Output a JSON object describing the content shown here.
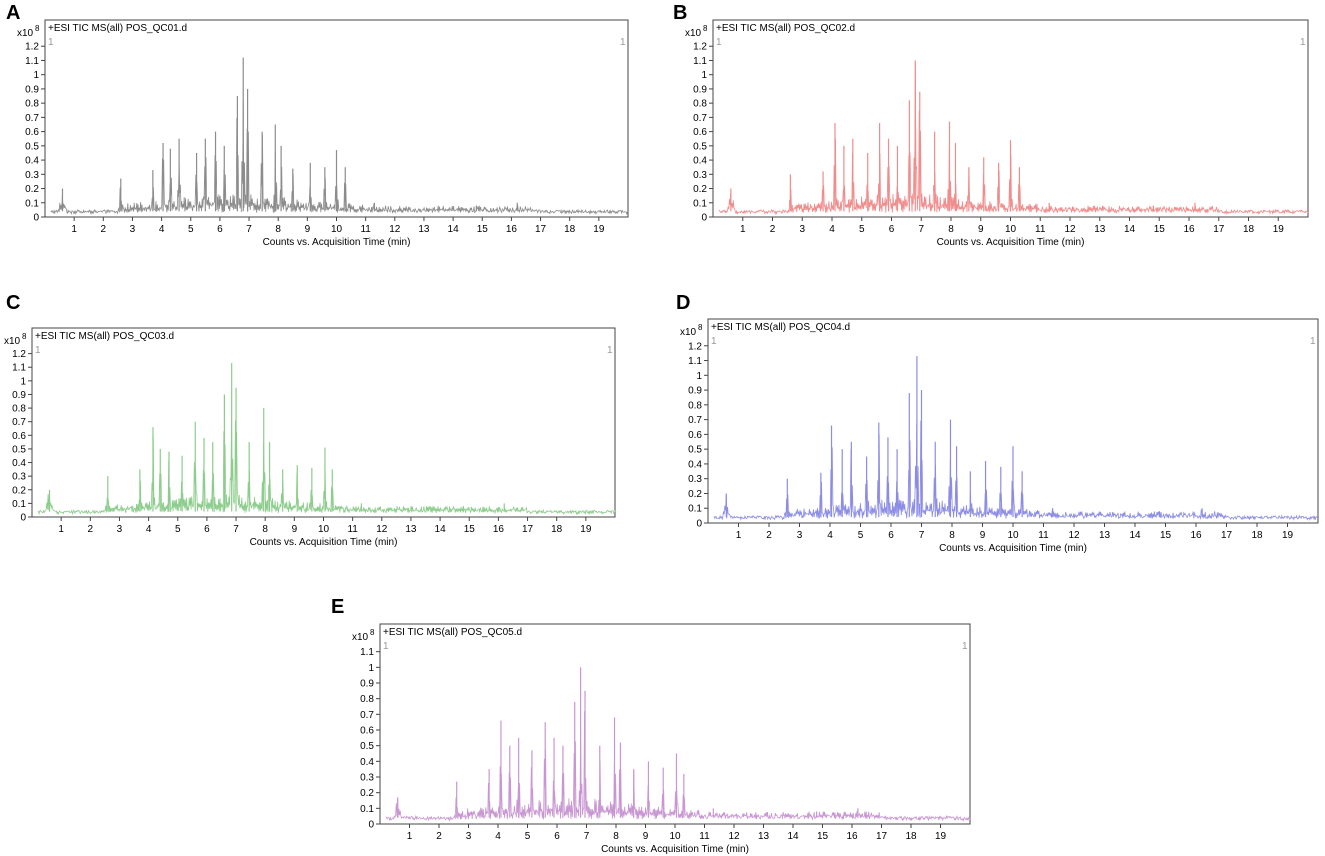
{
  "figure": {
    "x_unit_label": "Counts vs. Acquisition Time (min)",
    "y_exponent_label": "x10",
    "y_exponent_power": "8",
    "corner_marker": "1"
  },
  "chart_data": [
    {
      "panel": "A",
      "type": "line",
      "title": "+ESI TIC MS(all) POS_QC01.d",
      "xlabel": "Counts vs. Acquisition Time (min)",
      "ylabel": "x10^8",
      "color": "#8c8c8c",
      "xlim": [
        0,
        20
      ],
      "ylim": [
        0,
        1.3
      ],
      "xticks": [
        1,
        2,
        3,
        4,
        5,
        6,
        7,
        8,
        9,
        10,
        11,
        12,
        13,
        14,
        15,
        16,
        17,
        18,
        19
      ],
      "yticks": [
        0,
        0.1,
        0.2,
        0.3,
        0.4,
        0.5,
        0.6,
        0.7,
        0.8,
        0.9,
        1,
        1.1,
        1.2
      ],
      "ytick_labels": [
        "0",
        "0.1",
        "0.2",
        "0.3",
        "0.4",
        "0.5",
        "0.6",
        "0.7",
        "0.8",
        "0.9",
        "1",
        "1.1",
        "1.2"
      ],
      "peaks": [
        [
          0.6,
          0.2
        ],
        [
          2.6,
          0.27
        ],
        [
          3.7,
          0.33
        ],
        [
          4.05,
          0.52
        ],
        [
          4.3,
          0.48
        ],
        [
          4.6,
          0.55
        ],
        [
          5.2,
          0.45
        ],
        [
          5.5,
          0.55
        ],
        [
          5.85,
          0.6
        ],
        [
          6.15,
          0.5
        ],
        [
          6.6,
          0.85
        ],
        [
          6.8,
          1.12
        ],
        [
          6.95,
          0.9
        ],
        [
          7.45,
          0.6
        ],
        [
          7.9,
          0.65
        ],
        [
          8.1,
          0.5
        ],
        [
          8.5,
          0.34
        ],
        [
          9.1,
          0.38
        ],
        [
          9.6,
          0.35
        ],
        [
          10.0,
          0.47
        ],
        [
          10.3,
          0.35
        ],
        [
          11.3,
          0.1
        ],
        [
          14.8,
          0.08
        ],
        [
          16.2,
          0.1
        ]
      ]
    },
    {
      "panel": "B",
      "type": "line",
      "title": "+ESI TIC MS(all) POS_QC02.d",
      "xlabel": "Counts vs. Acquisition Time (min)",
      "ylabel": "x10^8",
      "color": "#f08c8c",
      "xlim": [
        0,
        20
      ],
      "ylim": [
        0,
        1.3
      ],
      "xticks": [
        1,
        2,
        3,
        4,
        5,
        6,
        7,
        8,
        9,
        10,
        11,
        12,
        13,
        14,
        15,
        16,
        17,
        18,
        19
      ],
      "yticks": [
        0,
        0.1,
        0.2,
        0.3,
        0.4,
        0.5,
        0.6,
        0.7,
        0.8,
        0.9,
        1,
        1.1,
        1.2
      ],
      "ytick_labels": [
        "0",
        "0.1",
        "0.2",
        "0.3",
        "0.4",
        "0.5",
        "0.6",
        "0.7",
        "0.8",
        "0.9",
        "1",
        "1.1",
        "1.2"
      ],
      "peaks": [
        [
          0.6,
          0.2
        ],
        [
          2.6,
          0.3
        ],
        [
          3.7,
          0.32
        ],
        [
          4.1,
          0.66
        ],
        [
          4.4,
          0.5
        ],
        [
          4.7,
          0.55
        ],
        [
          5.2,
          0.45
        ],
        [
          5.6,
          0.66
        ],
        [
          5.9,
          0.55
        ],
        [
          6.2,
          0.5
        ],
        [
          6.6,
          0.82
        ],
        [
          6.8,
          1.1
        ],
        [
          6.95,
          0.88
        ],
        [
          7.45,
          0.6
        ],
        [
          7.95,
          0.67
        ],
        [
          8.15,
          0.52
        ],
        [
          8.6,
          0.35
        ],
        [
          9.1,
          0.42
        ],
        [
          9.6,
          0.38
        ],
        [
          10.0,
          0.54
        ],
        [
          10.3,
          0.35
        ],
        [
          11.3,
          0.1
        ],
        [
          14.8,
          0.08
        ],
        [
          16.2,
          0.1
        ]
      ]
    },
    {
      "panel": "C",
      "type": "line",
      "title": "+ESI TIC MS(all) POS_QC03.d",
      "xlabel": "Counts vs. Acquisition Time (min)",
      "ylabel": "x10^8",
      "color": "#8ccc8c",
      "xlim": [
        0,
        20
      ],
      "ylim": [
        0,
        1.3
      ],
      "xticks": [
        1,
        2,
        3,
        4,
        5,
        6,
        7,
        8,
        9,
        10,
        11,
        12,
        13,
        14,
        15,
        16,
        17,
        18,
        19
      ],
      "yticks": [
        0,
        0.1,
        0.2,
        0.3,
        0.4,
        0.5,
        0.6,
        0.7,
        0.8,
        0.9,
        1,
        1.1,
        1.2
      ],
      "ytick_labels": [
        "0",
        "0.1",
        "0.2",
        "0.3",
        "0.4",
        "0.5",
        "0.6",
        "0.7",
        "0.8",
        "0.9",
        "1",
        "1.1",
        "1.2"
      ],
      "peaks": [
        [
          0.6,
          0.2
        ],
        [
          2.6,
          0.3
        ],
        [
          3.7,
          0.35
        ],
        [
          4.15,
          0.66
        ],
        [
          4.4,
          0.5
        ],
        [
          4.7,
          0.48
        ],
        [
          5.15,
          0.45
        ],
        [
          5.6,
          0.7
        ],
        [
          5.9,
          0.58
        ],
        [
          6.2,
          0.55
        ],
        [
          6.6,
          0.9
        ],
        [
          6.85,
          1.13
        ],
        [
          7.0,
          0.95
        ],
        [
          7.45,
          0.55
        ],
        [
          7.95,
          0.8
        ],
        [
          8.15,
          0.55
        ],
        [
          8.6,
          0.35
        ],
        [
          9.1,
          0.38
        ],
        [
          9.6,
          0.36
        ],
        [
          10.05,
          0.51
        ],
        [
          10.3,
          0.35
        ],
        [
          11.3,
          0.1
        ],
        [
          14.8,
          0.08
        ],
        [
          16.2,
          0.1
        ]
      ]
    },
    {
      "panel": "D",
      "type": "line",
      "title": "+ESI TIC MS(all) POS_QC04.d",
      "xlabel": "Counts vs. Acquisition Time (min)",
      "ylabel": "x10^8",
      "color": "#8c8ce6",
      "xlim": [
        0,
        20
      ],
      "ylim": [
        0,
        1.3
      ],
      "xticks": [
        1,
        2,
        3,
        4,
        5,
        6,
        7,
        8,
        9,
        10,
        11,
        12,
        13,
        14,
        15,
        16,
        17,
        18,
        19
      ],
      "yticks": [
        0,
        0.1,
        0.2,
        0.3,
        0.4,
        0.5,
        0.6,
        0.7,
        0.8,
        0.9,
        1,
        1.1,
        1.2
      ],
      "ytick_labels": [
        "0",
        "0.1",
        "0.2",
        "0.3",
        "0.4",
        "0.5",
        "0.6",
        "0.7",
        "0.8",
        "0.9",
        "1",
        "1.1",
        "1.2"
      ],
      "peaks": [
        [
          0.6,
          0.2
        ],
        [
          2.6,
          0.3
        ],
        [
          3.7,
          0.34
        ],
        [
          4.05,
          0.66
        ],
        [
          4.4,
          0.5
        ],
        [
          4.7,
          0.55
        ],
        [
          5.2,
          0.45
        ],
        [
          5.6,
          0.68
        ],
        [
          5.9,
          0.58
        ],
        [
          6.2,
          0.5
        ],
        [
          6.6,
          0.88
        ],
        [
          6.85,
          1.13
        ],
        [
          7.0,
          0.9
        ],
        [
          7.45,
          0.55
        ],
        [
          7.95,
          0.7
        ],
        [
          8.15,
          0.52
        ],
        [
          8.6,
          0.35
        ],
        [
          9.1,
          0.42
        ],
        [
          9.6,
          0.38
        ],
        [
          10.0,
          0.52
        ],
        [
          10.3,
          0.35
        ],
        [
          11.3,
          0.1
        ],
        [
          14.8,
          0.08
        ],
        [
          16.2,
          0.1
        ]
      ]
    },
    {
      "panel": "E",
      "type": "line",
      "title": "+ESI TIC MS(all) POS_QC05.d",
      "xlabel": "Counts vs. Acquisition Time (min)",
      "ylabel": "x10^8",
      "color": "#c896d2",
      "xlim": [
        0,
        20
      ],
      "ylim": [
        0,
        1.2
      ],
      "xticks": [
        1,
        2,
        3,
        4,
        5,
        6,
        7,
        8,
        9,
        10,
        11,
        12,
        13,
        14,
        15,
        16,
        17,
        18,
        19
      ],
      "yticks": [
        0,
        0.1,
        0.2,
        0.3,
        0.4,
        0.5,
        0.6,
        0.7,
        0.8,
        0.9,
        1,
        1.1
      ],
      "ytick_labels": [
        "0",
        "0.1",
        "0.2",
        "0.3",
        "0.4",
        "0.5",
        "0.6",
        "0.7",
        "0.8",
        "0.9",
        "1",
        "1.1"
      ],
      "peaks": [
        [
          0.6,
          0.17
        ],
        [
          2.6,
          0.27
        ],
        [
          3.7,
          0.35
        ],
        [
          4.1,
          0.66
        ],
        [
          4.4,
          0.5
        ],
        [
          4.7,
          0.55
        ],
        [
          5.15,
          0.47
        ],
        [
          5.6,
          0.65
        ],
        [
          5.9,
          0.55
        ],
        [
          6.2,
          0.5
        ],
        [
          6.6,
          0.78
        ],
        [
          6.8,
          1.0
        ],
        [
          6.95,
          0.85
        ],
        [
          7.45,
          0.5
        ],
        [
          7.95,
          0.68
        ],
        [
          8.15,
          0.52
        ],
        [
          8.6,
          0.35
        ],
        [
          9.1,
          0.4
        ],
        [
          9.6,
          0.36
        ],
        [
          10.05,
          0.45
        ],
        [
          10.3,
          0.32
        ],
        [
          11.3,
          0.1
        ],
        [
          14.8,
          0.08
        ],
        [
          16.2,
          0.1
        ]
      ]
    }
  ]
}
